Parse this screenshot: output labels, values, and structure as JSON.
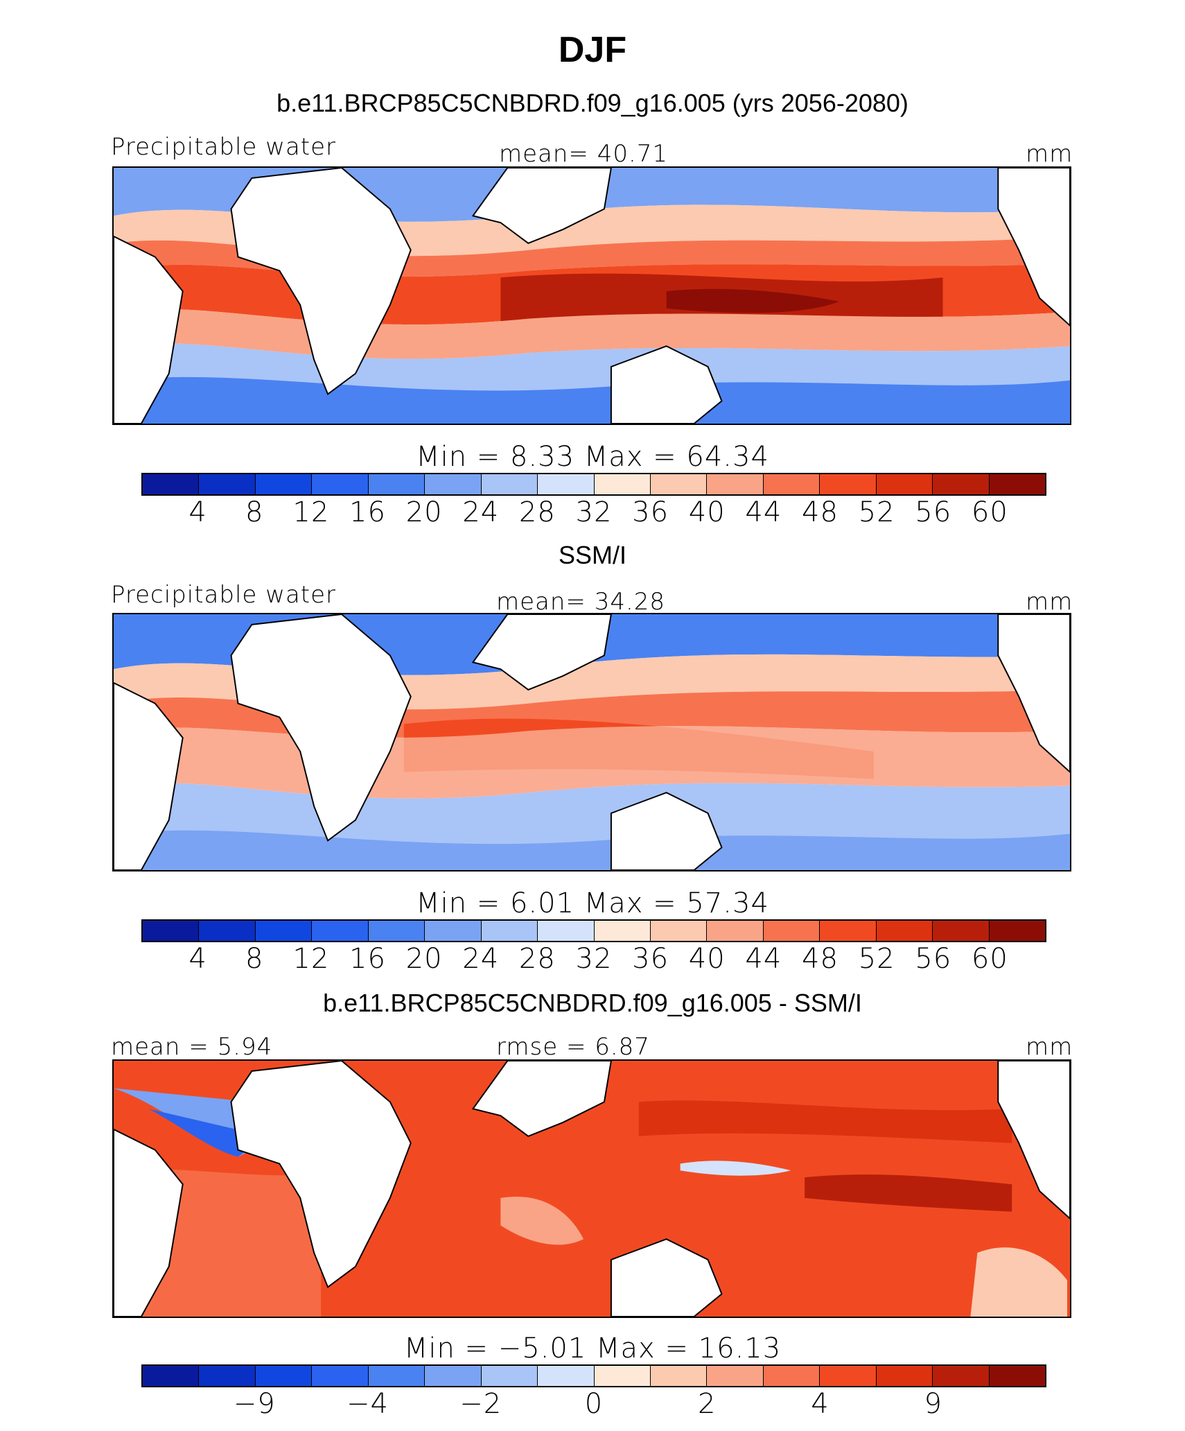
{
  "title": "DJF",
  "colorbar_colors": [
    "#0a1a9c",
    "#0a2fc4",
    "#1047e0",
    "#2a63ef",
    "#4a82f2",
    "#7aa3f3",
    "#a9c4f7",
    "#d4e3fb",
    "#fee9d8",
    "#fccab0",
    "#f9a487",
    "#f7734f",
    "#f14a22",
    "#dc3210",
    "#b81f0a",
    "#8c0d05"
  ],
  "panels": [
    {
      "title": "b.e11.BRCP85C5CNBDRD.f09_g16.005 (yrs 2056-2080)",
      "left_label": "Precipitable water",
      "center_label": "mean=   40.71",
      "units": "mm",
      "minmax": "Min  =    8.33  Max  =   64.34",
      "ticks": [
        "4",
        "8",
        "12",
        "16",
        "20",
        "24",
        "28",
        "32",
        "36",
        "40",
        "44",
        "48",
        "52",
        "56",
        "60"
      ]
    },
    {
      "title": "SSM/I",
      "left_label": "Precipitable water",
      "center_label": "mean=   34.28",
      "units": "mm",
      "minmax": "Min  =    6.01  Max  =   57.34",
      "ticks": [
        "4",
        "8",
        "12",
        "16",
        "20",
        "24",
        "28",
        "32",
        "36",
        "40",
        "44",
        "48",
        "52",
        "56",
        "60"
      ]
    },
    {
      "title": "b.e11.BRCP85C5CNBDRD.f09_g16.005 - SSM/I",
      "left_label": "mean =    5.94",
      "center_label": "rmse =    6.87",
      "units": "mm",
      "minmax": "Min  =   −5.01  Max  =   16.13",
      "ticks": [
        "−9",
        "−4",
        "−2",
        "0",
        "2",
        "4",
        "9"
      ]
    }
  ]
}
